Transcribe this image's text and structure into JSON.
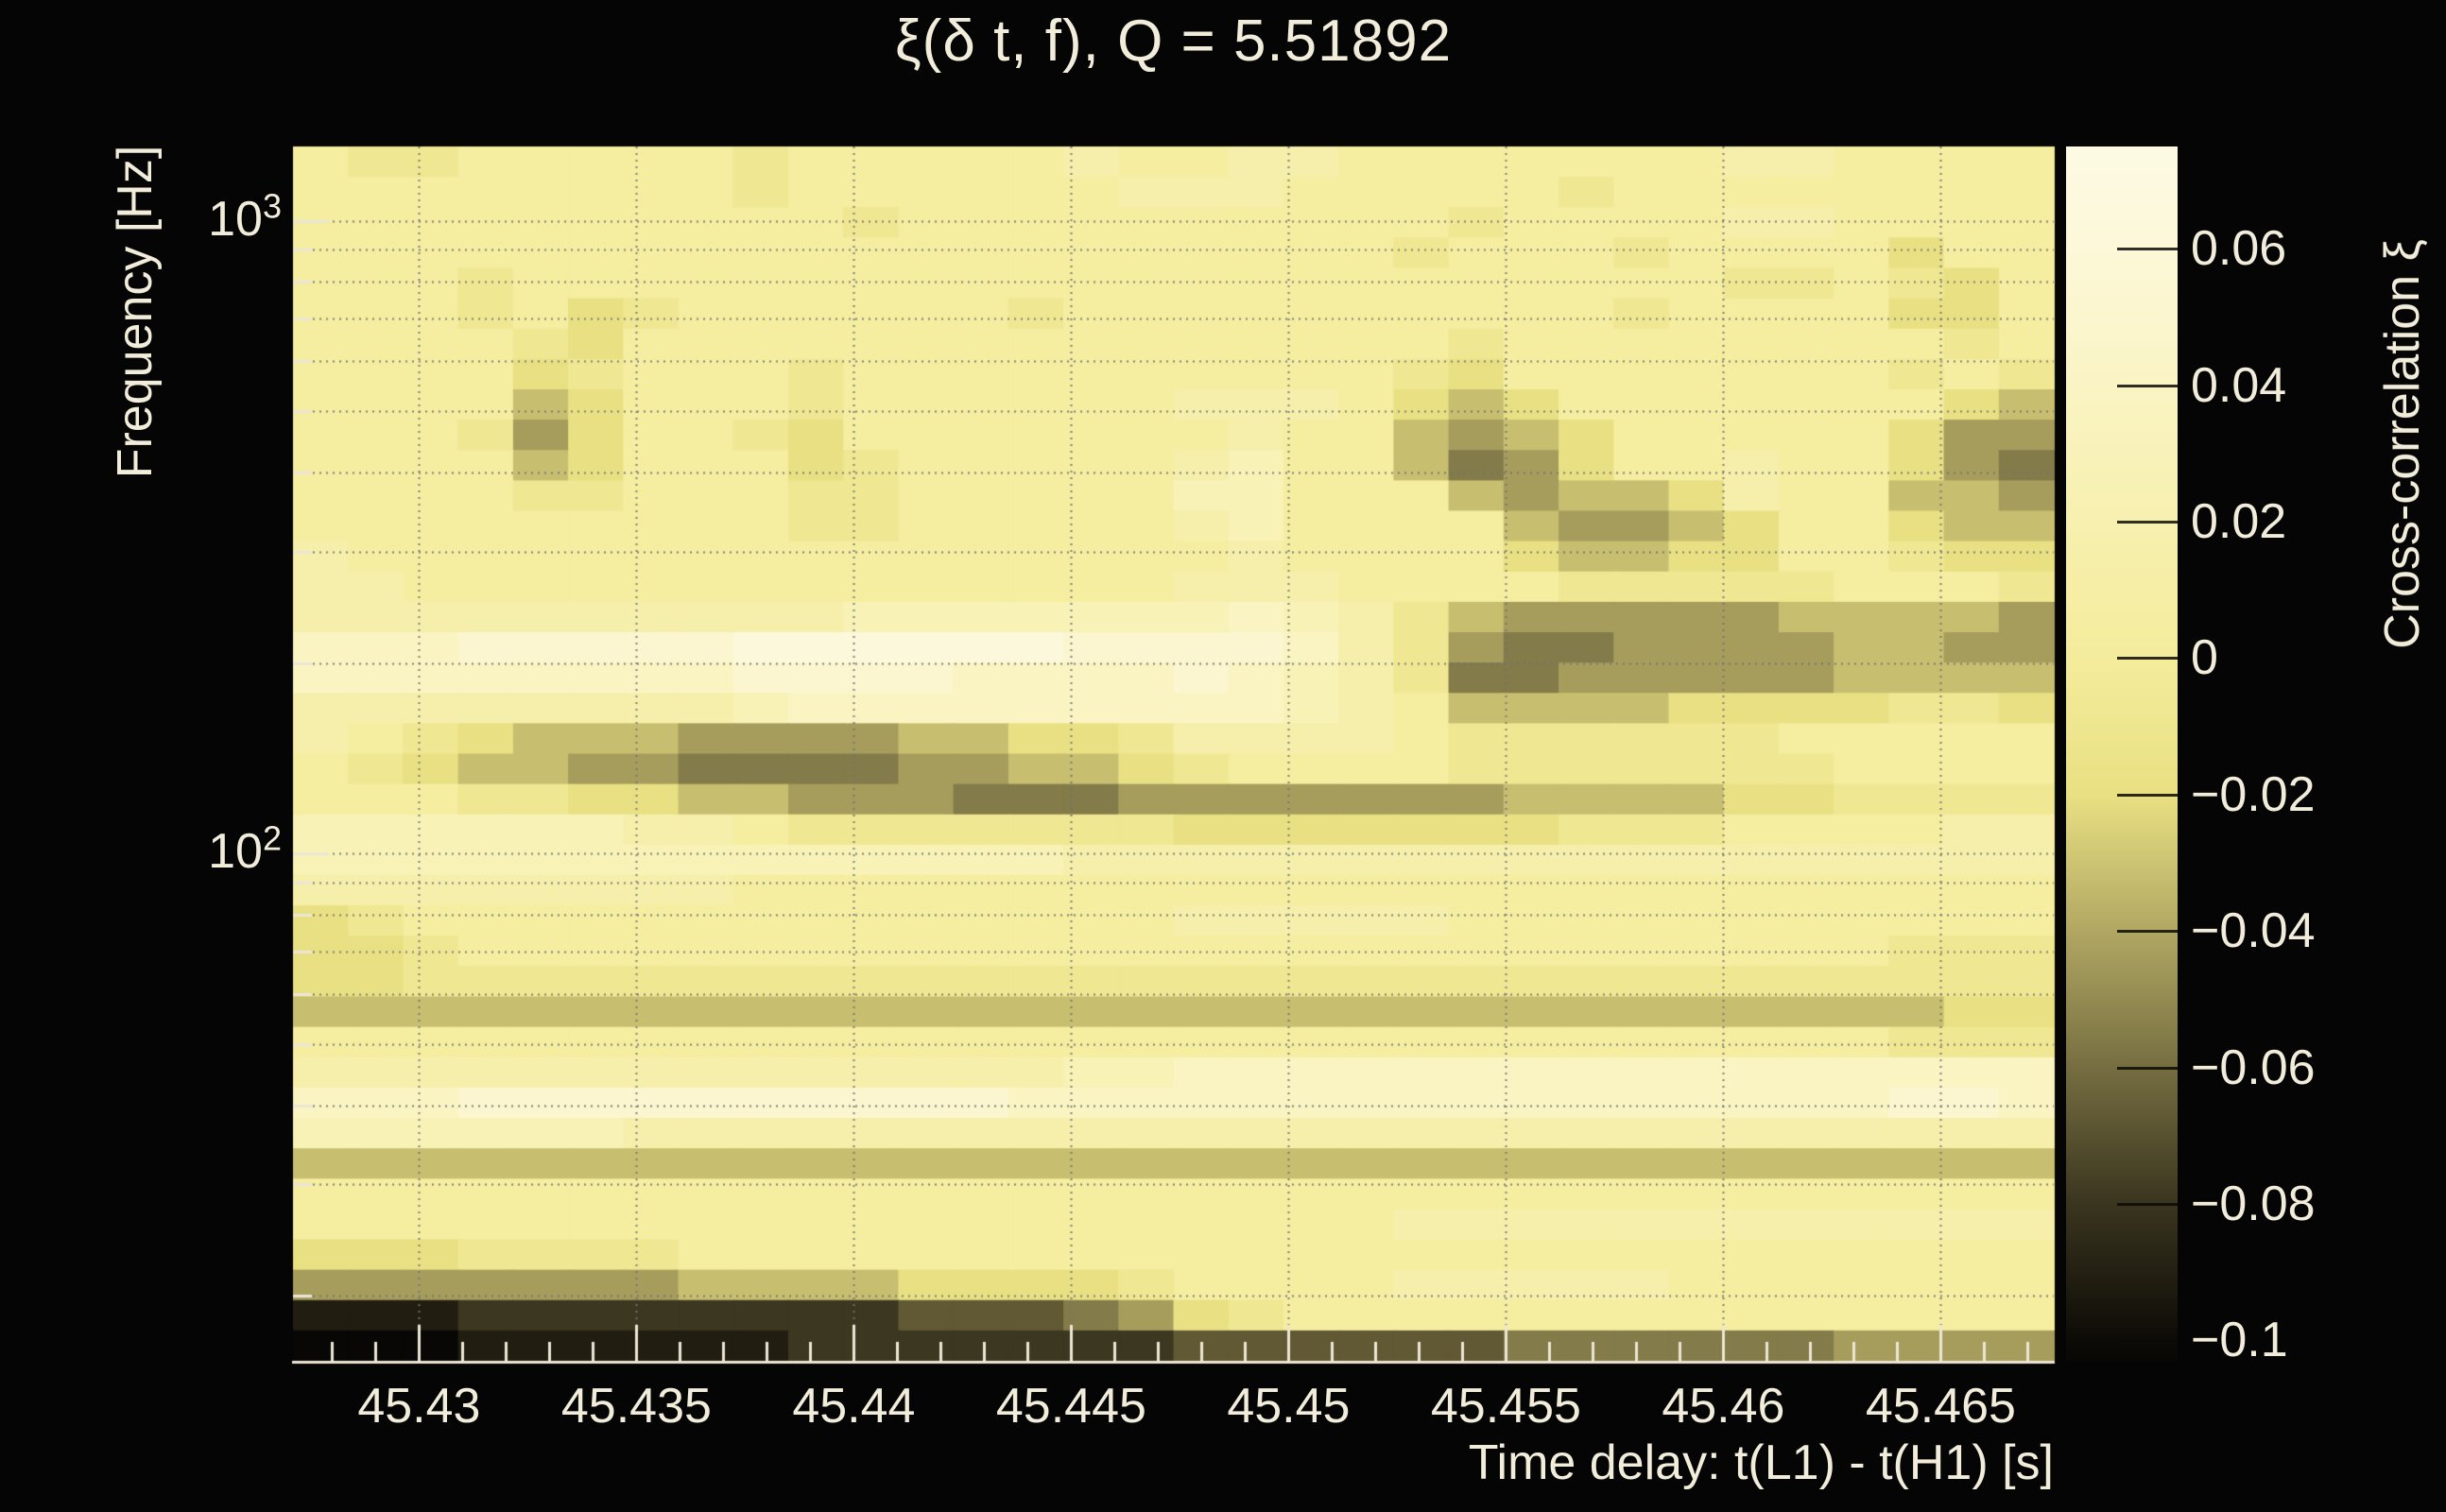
{
  "page": {
    "background": "#050505",
    "text_color": "#f2edda"
  },
  "chart_data": {
    "type": "heatmap",
    "title": "ξ(δ t, f), Q = 5.51892",
    "xlabel": "Time delay: t(L1) - t(H1) [s]",
    "ylabel": "Frequency [Hz]",
    "zlabel": "Cross-correlation ξ",
    "x_axis": {
      "min": 45.4271,
      "max": 45.4676,
      "minor_step": 0.001,
      "ticks": [
        {
          "value": 45.43,
          "label": "45.43"
        },
        {
          "value": 45.435,
          "label": "45.435"
        },
        {
          "value": 45.44,
          "label": "45.44"
        },
        {
          "value": 45.445,
          "label": "45.445"
        },
        {
          "value": 45.45,
          "label": "45.45"
        },
        {
          "value": 45.455,
          "label": "45.455"
        },
        {
          "value": 45.46,
          "label": "45.46"
        },
        {
          "value": 45.465,
          "label": "45.465"
        }
      ]
    },
    "y_axis": {
      "scale": "log",
      "min_hz": 15.8,
      "max_hz": 1310,
      "major_ticks": [
        {
          "value": 1000,
          "base": "10",
          "exp": "3"
        },
        {
          "value": 100,
          "base": "10",
          "exp": "2"
        }
      ],
      "minor_ticks_hz": [
        900,
        800,
        700,
        600,
        500,
        400,
        300,
        200,
        90,
        80,
        70,
        60,
        50,
        40,
        30,
        20
      ]
    },
    "z_axis": {
      "min": -0.103,
      "max": 0.075,
      "ticks": [
        {
          "value": 0.06,
          "label": "0.06"
        },
        {
          "value": 0.04,
          "label": "0.04"
        },
        {
          "value": 0.02,
          "label": "0.02"
        },
        {
          "value": 0,
          "label": "0"
        },
        {
          "value": -0.02,
          "label": "−0.02"
        },
        {
          "value": -0.04,
          "label": "−0.04"
        },
        {
          "value": -0.06,
          "label": "−0.06"
        },
        {
          "value": -0.08,
          "label": "−0.08"
        },
        {
          "value": -0.1,
          "label": "−0.1"
        }
      ]
    },
    "colormap_stops": [
      {
        "v": -0.103,
        "c": "#080705"
      },
      {
        "v": -0.1,
        "c": "#0d0b06"
      },
      {
        "v": -0.08,
        "c": "#3a351f"
      },
      {
        "v": -0.06,
        "c": "#766e41"
      },
      {
        "v": -0.04,
        "c": "#b1a763"
      },
      {
        "v": -0.02,
        "c": "#e9e083"
      },
      {
        "v": 0.0,
        "c": "#f4ec9c"
      },
      {
        "v": 0.02,
        "c": "#f7f0af"
      },
      {
        "v": 0.04,
        "c": "#faf4c4"
      },
      {
        "v": 0.06,
        "c": "#fcf8d8"
      },
      {
        "v": 0.075,
        "c": "#fdfae4"
      }
    ],
    "grid": {
      "style": "dotted",
      "color": "rgba(115,115,115,0.9)",
      "x_lines": [
        45.43,
        45.435,
        45.44,
        45.445,
        45.45,
        45.455,
        45.46,
        45.465
      ],
      "y_lines_hz": [
        1000,
        900,
        800,
        700,
        600,
        500,
        400,
        300,
        200,
        100,
        90,
        80,
        70,
        60,
        50,
        40,
        30,
        20
      ]
    },
    "cells": {
      "encoding": "hex digit 0–15 per cell; ξ = z_min + idx/15 × (z_max − z_min)",
      "rows_top_to_bottom": [
        "98899999899999a99aa9999999aa9999",
        "999999998999999aaa99999899999999",
        "99999999998999999999989999aa9999",
        "99999999999999999999899989999799",
        "99989999999999999999999999889879",
        "99989789999998999999999989999779",
        "99998799999999999999989999999989",
        "99997899989999999999879999999898",
        "9999679998999999aaa9767999999976",
        "99985799879999999a99656799999755",
        "999967999789999 9ab99645799a99754",
        "9999889998899999bb99965667a99665",
        "9999999998899999ab99996556799766",
        "a99999999999999 99a99997667799877",
        "aa99999999999999aaa9999888889998",
        "aaaaaaaaaabbbbbbbcba865555566665",
        "cccdddddeeeeeeddddca854455556655",
        "ccccccccddddccccdcba844555556666",
        "aaaaaaaabcccccccccba966667777887",
        "a987666555566778aaaa988888899999",
        "987665544445566789999888 88889999",
        "9998877665554445555555 6666778888",
        "bbbbbbaa9888888877777778889999aa",
        "bbbbbbbbbbbbbbaaaaaaaaaaaaaaaaaa",
        "aaaaaaaa999999999999999999999999",
        "7899999999999999aaaaa99999999999",
        "778999999999999999999999 99999888",
        "77888888888888888888888888888888",
        "66666666666666666666666666666677",
        "999999999999999999999999 99999888",
        "aaaaaaaaaaaaaabbcccccccccccccccc",
        "cccdddddd ddddccccccccccccccccddc",
        "bbbbbbaaaaaaaaaaaaaaaaaaaaaaaaaa",
        "66666666666666666666666666666666",
        "99999999999999999999999999999999",
        "99999999999999999999aaaaaaaaaaaa",
        "77788889999999999999999999999999",
        "55555556666777789999aaaaa9999999",
        "11122222222333457899999999999999",
        "00011111122222223333334444445555"
      ]
    }
  }
}
